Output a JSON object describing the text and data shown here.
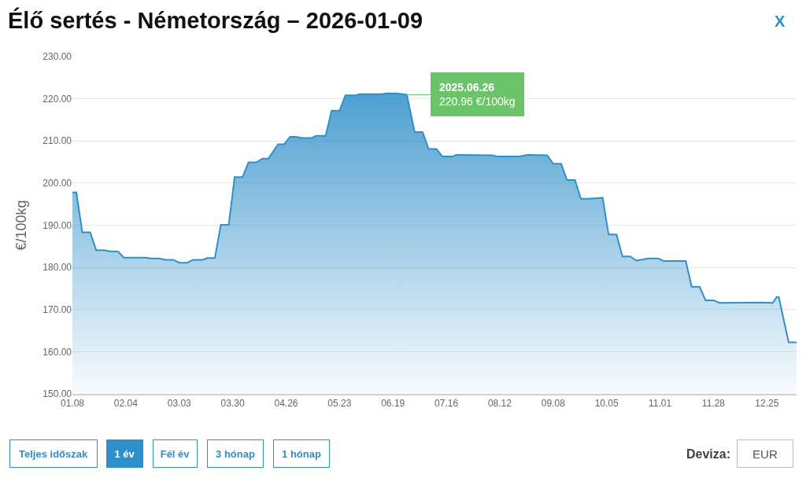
{
  "chart_data": {
    "type": "area",
    "title": "Élő sertés - Németország – 2026-01-09",
    "ylabel": "€/100kg",
    "x": [
      "2025-01-08",
      "2025-01-10",
      "2025-01-13",
      "2025-01-17",
      "2025-01-20",
      "2025-01-24",
      "2025-01-27",
      "2025-01-31",
      "2025-02-03",
      "2025-02-14",
      "2025-02-17",
      "2025-02-21",
      "2025-02-24",
      "2025-02-28",
      "2025-03-03",
      "2025-03-07",
      "2025-03-10",
      "2025-03-15",
      "2025-03-17",
      "2025-03-21",
      "2025-03-24",
      "2025-03-28",
      "2025-03-31",
      "2025-04-04",
      "2025-04-07",
      "2025-04-11",
      "2025-04-14",
      "2025-04-17",
      "2025-04-22",
      "2025-04-25",
      "2025-04-28",
      "2025-05-01",
      "2025-05-04",
      "2025-05-09",
      "2025-05-11",
      "2025-05-16",
      "2025-05-19",
      "2025-05-23",
      "2025-05-26",
      "2025-05-31",
      "2025-06-02",
      "2025-06-13",
      "2025-06-16",
      "2025-06-21",
      "2025-06-26",
      "2025-06-30",
      "2025-07-04",
      "2025-07-07",
      "2025-07-11",
      "2025-07-14",
      "2025-07-19",
      "2025-07-21",
      "2025-08-08",
      "2025-08-11",
      "2025-08-22",
      "2025-08-26",
      "2025-09-05",
      "2025-09-08",
      "2025-09-12",
      "2025-09-15",
      "2025-09-19",
      "2025-09-22",
      "2025-09-26",
      "2025-10-03",
      "2025-10-06",
      "2025-10-10",
      "2025-10-13",
      "2025-10-17",
      "2025-10-20",
      "2025-10-26",
      "2025-10-31",
      "2025-11-03",
      "2025-11-14",
      "2025-11-17",
      "2025-11-21",
      "2025-11-24",
      "2025-11-28",
      "2025-12-01",
      "2025-12-22",
      "2025-12-28",
      "2025-12-30",
      "2025-12-31",
      "2026-01-05",
      "2026-01-09"
    ],
    "series": [
      {
        "color": "#2f8fc9",
        "values": [
          197.8,
          197.8,
          188.3,
          188.3,
          184.1,
          184.1,
          183.8,
          183.8,
          182.3,
          182.3,
          182.1,
          182.1,
          181.8,
          181.8,
          181.1,
          181.1,
          181.8,
          181.8,
          182.2,
          182.2,
          190.1,
          190.1,
          201.4,
          201.4,
          204.9,
          204.9,
          205.8,
          205.8,
          209.2,
          209.2,
          211.0,
          211.0,
          210.7,
          210.7,
          211.2,
          211.2,
          217.2,
          217.2,
          220.8,
          220.8,
          221.1,
          221.1,
          221.3,
          221.3,
          220.96,
          212.1,
          212.1,
          208.1,
          208.1,
          206.3,
          206.3,
          206.7,
          206.6,
          206.3,
          206.3,
          206.7,
          206.6,
          204.6,
          204.6,
          200.7,
          200.7,
          196.3,
          196.3,
          196.5,
          187.8,
          187.8,
          182.6,
          182.6,
          181.6,
          182.1,
          182.1,
          181.5,
          181.5,
          175.4,
          175.4,
          172.2,
          172.2,
          171.6,
          171.7,
          171.6,
          173.0,
          173.0,
          162.2,
          162.2
        ]
      }
    ],
    "xlim": [
      "2025-01-08",
      "2026-01-09"
    ],
    "xticks": [
      {
        "value": "2025-01-08",
        "label": "01.08"
      },
      {
        "value": "2025-02-04",
        "label": "02.04"
      },
      {
        "value": "2025-03-03",
        "label": "03.03"
      },
      {
        "value": "2025-03-30",
        "label": "03.30"
      },
      {
        "value": "2025-04-26",
        "label": "04.26"
      },
      {
        "value": "2025-05-23",
        "label": "05.23"
      },
      {
        "value": "2025-06-19",
        "label": "06.19"
      },
      {
        "value": "2025-07-16",
        "label": "07.16"
      },
      {
        "value": "2025-08-12",
        "label": "08.12"
      },
      {
        "value": "2025-09-08",
        "label": "09.08"
      },
      {
        "value": "2025-10-05",
        "label": "10.05"
      },
      {
        "value": "2025-11-01",
        "label": "11.01"
      },
      {
        "value": "2025-11-28",
        "label": "11.28"
      },
      {
        "value": "2025-12-25",
        "label": "12.25"
      }
    ],
    "ylim": [
      150,
      230
    ],
    "yticks": [
      {
        "value": 150,
        "label": "150.00"
      },
      {
        "value": 160,
        "label": "160.00"
      },
      {
        "value": 170,
        "label": "170.00"
      },
      {
        "value": 180,
        "label": "180.00"
      },
      {
        "value": 190,
        "label": "190.00"
      },
      {
        "value": 200,
        "label": "200.00"
      },
      {
        "value": 210,
        "label": "210.00"
      },
      {
        "value": 220,
        "label": "220.00"
      },
      {
        "value": 230,
        "label": "230.00"
      }
    ],
    "grid": "y",
    "marker": "none",
    "line_style": "solid",
    "annotations": [
      {
        "text": "2025.06.26\n220.96 €/100kg",
        "x": "2025-06-26",
        "y": 220.96
      },
      "Teljes időszak",
      "1 év",
      "Fél év",
      "3 hónap",
      "1 hónap",
      "Deviza:",
      "EUR",
      "X"
    ]
  }
}
